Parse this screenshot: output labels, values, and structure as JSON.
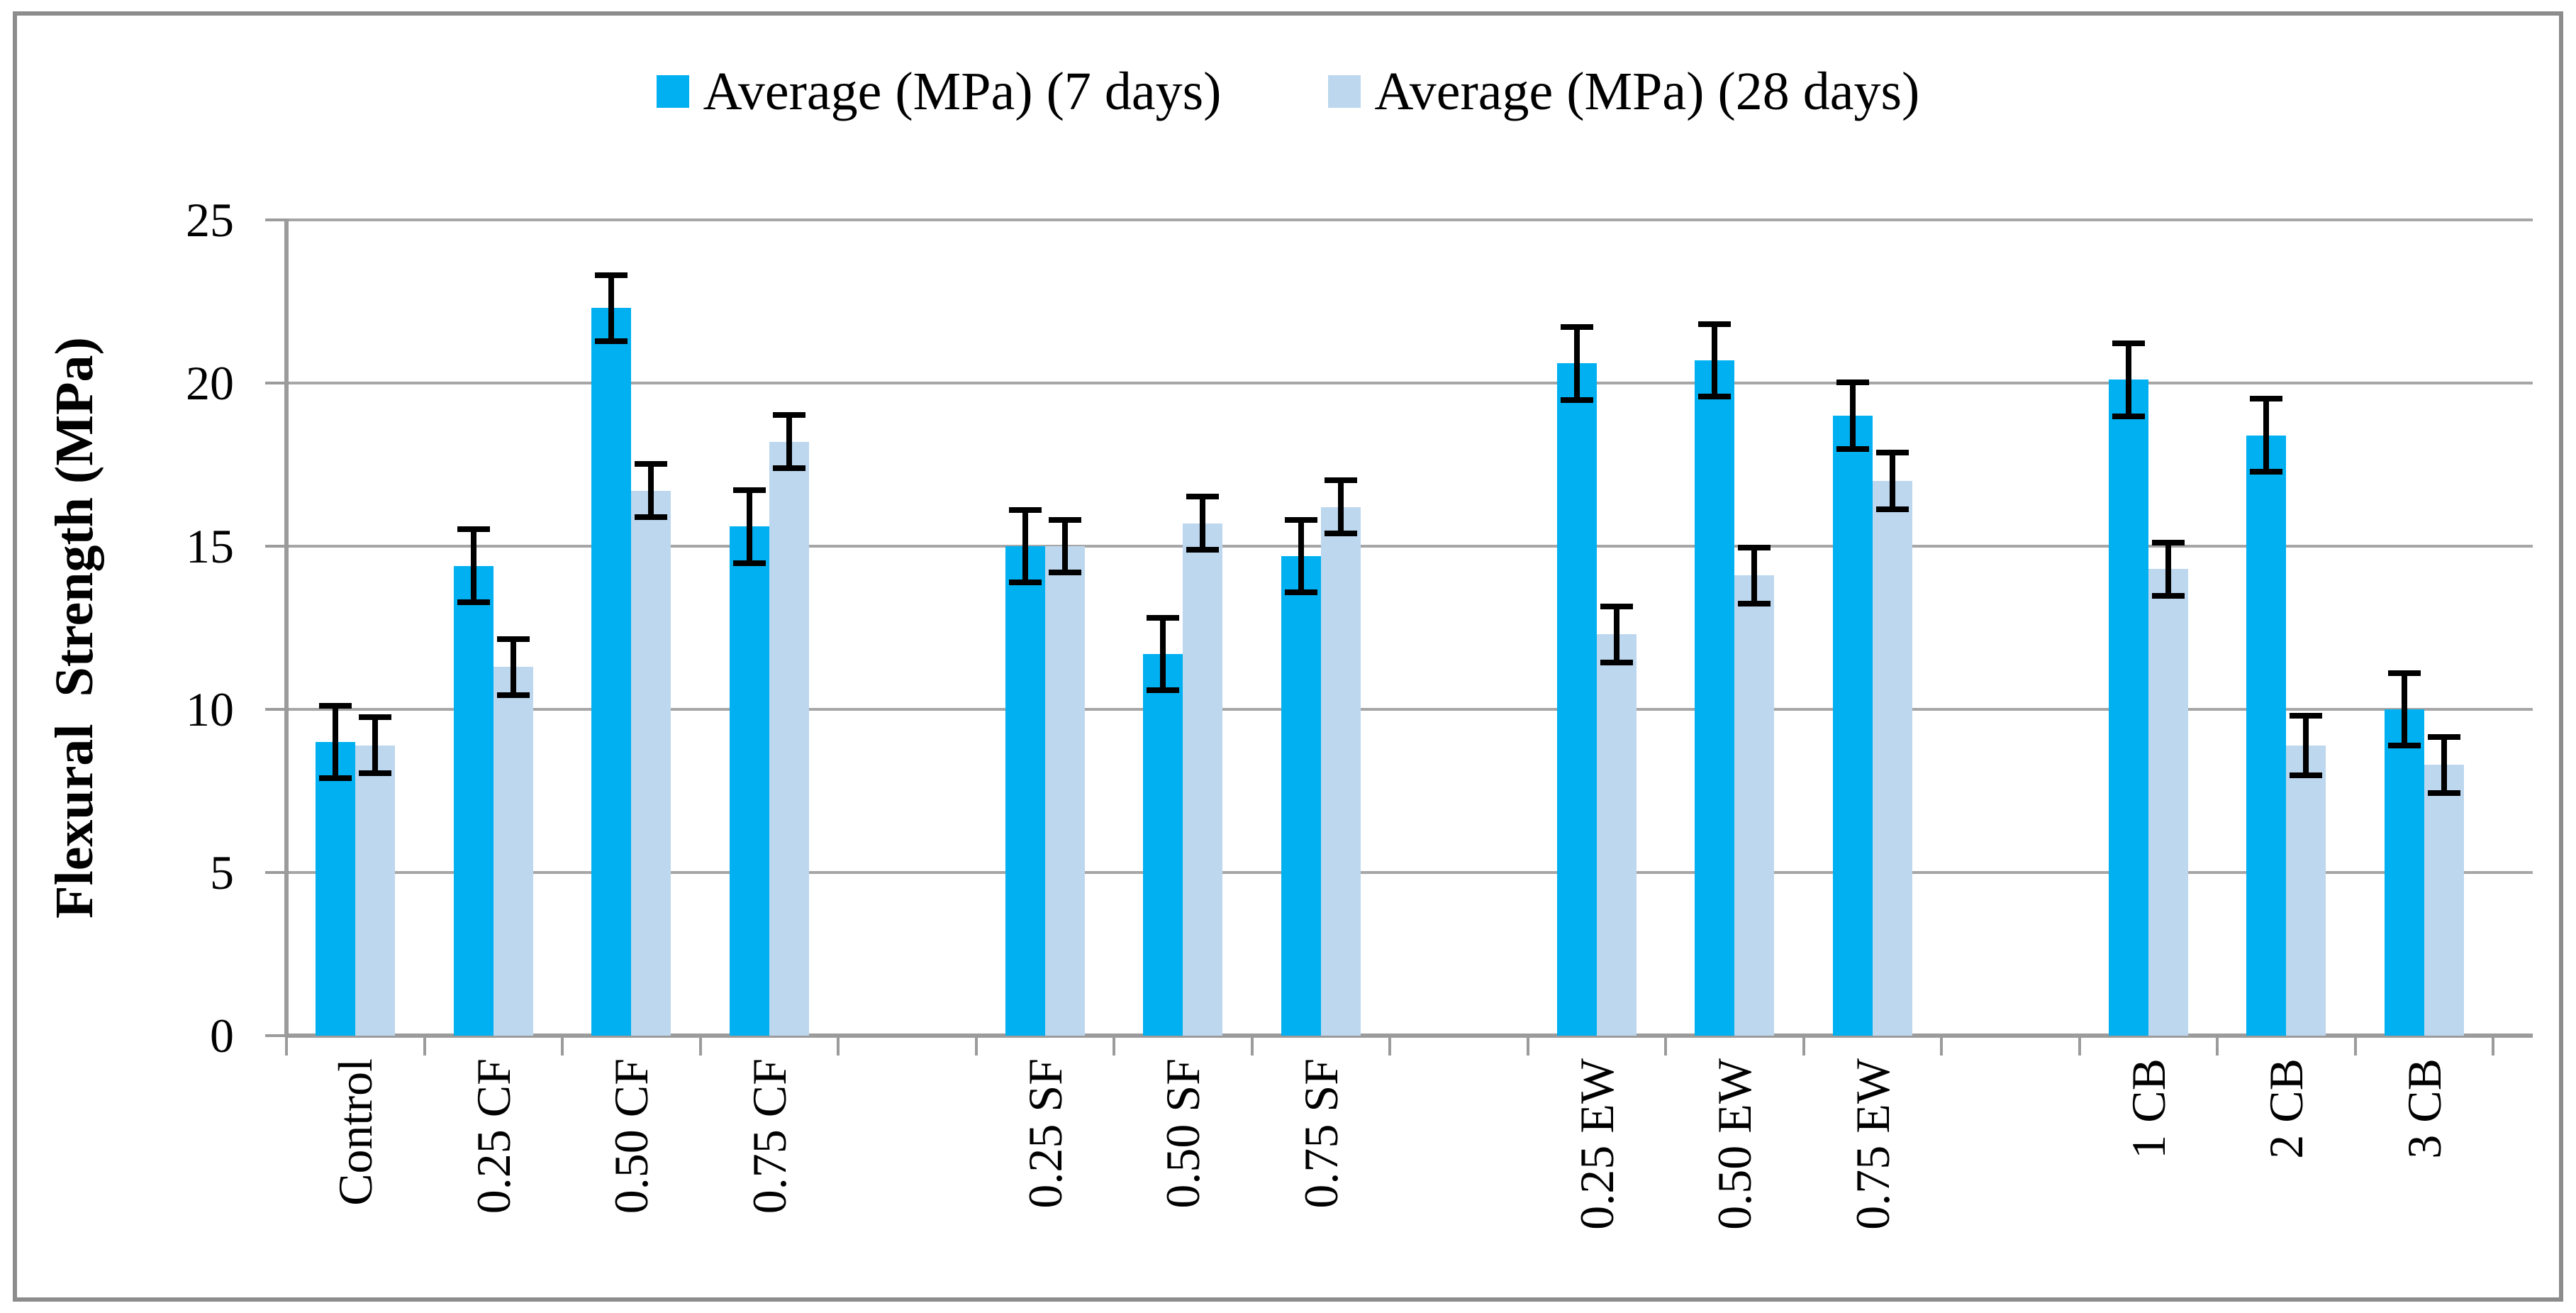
{
  "figure": {
    "background": "#FFFFFF",
    "border_color": "#8C8C8C"
  },
  "chart_data": {
    "type": "bar",
    "title": "",
    "ylabel": "Flexural  Strength (MPa)",
    "xlabel": "",
    "ylim": [
      0,
      25
    ],
    "yticks": [
      "0",
      "5",
      "10",
      "15",
      "20",
      "25"
    ],
    "ytick_values": [
      0,
      5,
      10,
      15,
      20,
      25
    ],
    "grid": true,
    "legend_position": "top-center",
    "categories": [
      "Control",
      "0.25 CF",
      "0.50 CF",
      "0.75 CF",
      "0.25 SF",
      "0.50 SF",
      "0.75 SF",
      "0.25 EW",
      "0.50 EW",
      "0.75 EW",
      "1 CB",
      "2 CB",
      "3 CB"
    ],
    "slot_indices": [
      0,
      1,
      2,
      3,
      5,
      6,
      7,
      9,
      10,
      11,
      13,
      14,
      15
    ],
    "num_slots": 16,
    "series": [
      {
        "name": "Average (MPa) (7 days)",
        "color": "#00B0F0",
        "values": [
          9.0,
          14.4,
          22.3,
          15.6,
          15.0,
          11.7,
          14.7,
          20.6,
          20.7,
          19.0,
          20.1,
          18.4,
          10.0
        ],
        "errors": [
          1.2,
          1.2,
          1.1,
          1.2,
          1.2,
          1.2,
          1.2,
          1.2,
          1.2,
          1.1,
          1.2,
          1.2,
          1.2
        ]
      },
      {
        "name": "Average (MPa) (28 days)",
        "color": "#BDD7EE",
        "values": [
          8.9,
          11.3,
          16.7,
          18.2,
          15.0,
          15.7,
          16.2,
          12.3,
          14.1,
          17.0,
          14.3,
          8.9,
          8.3
        ],
        "errors": [
          0.95,
          0.95,
          0.9,
          0.9,
          0.9,
          0.9,
          0.9,
          0.95,
          0.95,
          0.95,
          0.9,
          1.0,
          0.95
        ]
      }
    ],
    "error_bar_color": "#000000",
    "gridline_color": "#A6A6A6",
    "axis_color": "#9B9B9B",
    "text_color": "#000000"
  }
}
